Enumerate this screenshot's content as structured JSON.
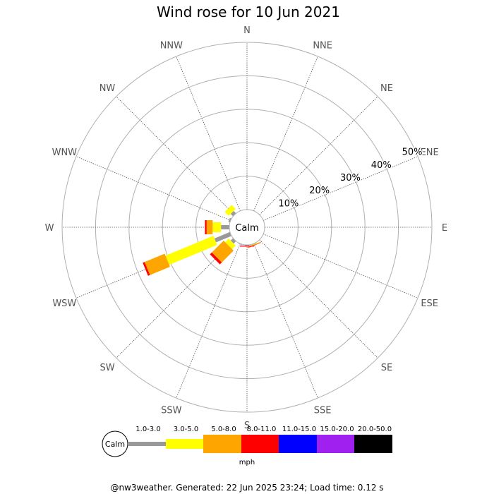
{
  "chart_data": {
    "type": "windrose",
    "title": "Wind rose for 10 Jun 2021",
    "calm_label": "Calm",
    "directions": [
      "N",
      "NNE",
      "NE",
      "ENE",
      "E",
      "ESE",
      "SE",
      "SSE",
      "S",
      "SSW",
      "SW",
      "WSW",
      "W",
      "WNW",
      "NW",
      "NNW"
    ],
    "ring_values": [
      10,
      20,
      30,
      40,
      50
    ],
    "ring_labels": [
      "10%",
      "20%",
      "30%",
      "40%",
      "50%"
    ],
    "speed_unit": "mph",
    "speed_bins": [
      "1.0-3.0",
      "3.0-5.0",
      "5.0-8.0",
      "8.0-11.0",
      "11.0-15.0",
      "15.0-20.0",
      "20.0-50.0"
    ],
    "bin_colors": [
      "#999999",
      "#ffff00",
      "#ffa500",
      "#ff0000",
      "#0000ff",
      "#a020f0",
      "#000000"
    ],
    "frequencies_cumulative": {
      "SSE": [
        0.2,
        0.3,
        0.5,
        0.6,
        0.6,
        0.6,
        0.6
      ],
      "S": [
        0.2,
        0.2,
        0.2,
        0.5,
        0.5,
        0.5,
        0.5
      ],
      "SSW": [
        0.2,
        0.2,
        0.2,
        0.2,
        0.2,
        0.2,
        0.2
      ],
      "SW": [
        1.0,
        2.5,
        7.5,
        8.3,
        8.3,
        8.3,
        8.3
      ],
      "WSW": [
        5.0,
        20.5,
        27.0,
        27.6,
        27.6,
        27.6,
        27.6
      ],
      "W": [
        2.5,
        5.0,
        6.8,
        7.3,
        7.3,
        7.3,
        7.3
      ],
      "WNW": [
        0.5,
        0.5,
        0.5,
        0.5,
        0.5,
        0.5,
        0.5
      ],
      "NW": [
        1.0,
        2.7,
        2.7,
        2.7,
        2.7,
        2.7,
        2.7
      ]
    },
    "grid": true
  },
  "footer": {
    "text": "@nw3weather. Generated: 22 Jun 2025 23:24; Load time: 0.12 s"
  }
}
